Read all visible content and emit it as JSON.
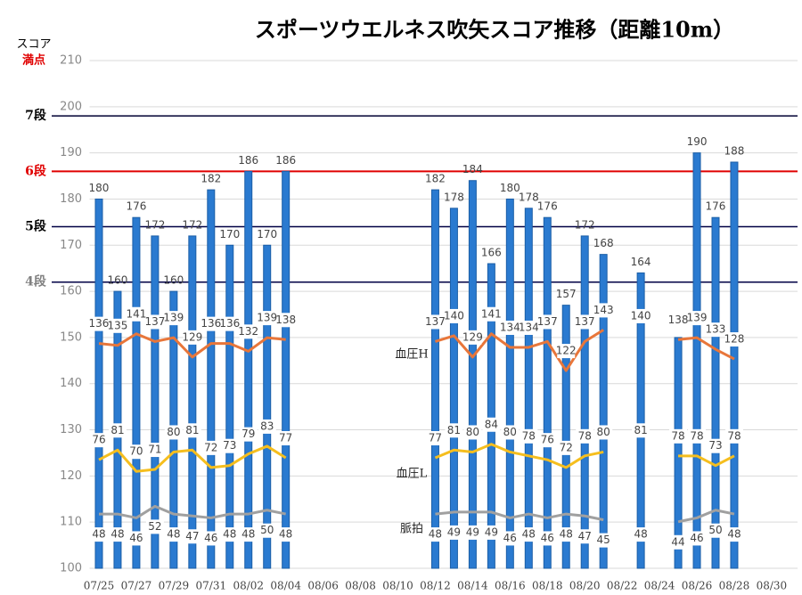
{
  "chart_data": {
    "type": "bar",
    "title": "スポーツウエルネス吹矢スコア推移（距離10m）",
    "y_label": "スコア",
    "y_label_sub": "満点",
    "categories": [
      "07/25",
      null,
      "07/27",
      null,
      "07/29",
      null,
      "07/31",
      null,
      "08/02",
      null,
      "08/04",
      null,
      "08/06",
      null,
      "08/08",
      null,
      "08/10",
      null,
      "08/12",
      null,
      "08/14",
      null,
      "08/16",
      null,
      "08/18",
      null,
      "08/20",
      null,
      "08/22",
      null,
      "08/24",
      null,
      "08/26",
      null,
      "08/28",
      null,
      "08/30"
    ],
    "ylim": [
      100,
      210
    ],
    "yticks": [
      100,
      110,
      120,
      130,
      140,
      150,
      160,
      170,
      180,
      190,
      200,
      210
    ],
    "y2lim": [
      20,
      282
    ],
    "grid": true,
    "reference_lines": [
      {
        "label": "7段",
        "value": 198,
        "color": "#000033",
        "label_color": "#000000"
      },
      {
        "label": "6段",
        "value": 186,
        "color": "#e00000",
        "label_color": "#e00000"
      },
      {
        "label": "5段",
        "value": 174,
        "color": "#000044",
        "label_color": "#000000"
      },
      {
        "label": "4段",
        "value": 162,
        "color": "#000044",
        "label_color": "#808080"
      }
    ],
    "series": [
      {
        "name": "スコア",
        "color": "#2a7ad0",
        "values": [
          180,
          160,
          176,
          172,
          160,
          172,
          182,
          170,
          186,
          170,
          186,
          null,
          null,
          null,
          null,
          null,
          null,
          null,
          182,
          178,
          184,
          166,
          180,
          178,
          176,
          157,
          172,
          168,
          null,
          164,
          null,
          150,
          190,
          176,
          188,
          null,
          null
        ],
        "value_labels": [
          "180",
          "160",
          "176",
          "172",
          "160",
          "172",
          "182",
          "170",
          "186",
          "170",
          "186",
          null,
          null,
          null,
          null,
          null,
          null,
          null,
          "182",
          "178",
          "184",
          "166",
          "180",
          "178",
          "176",
          "157",
          "172",
          "168",
          null,
          "164",
          null,
          null,
          "190",
          "176",
          "188",
          null,
          null
        ]
      },
      {
        "name": "血圧H",
        "color": "#e8763a",
        "axis": "y2",
        "values": [
          136,
          135,
          141,
          137,
          139,
          129,
          136,
          136,
          132,
          139,
          138,
          null,
          null,
          null,
          null,
          null,
          null,
          null,
          137,
          140,
          129,
          141,
          134,
          134,
          137,
          122,
          137,
          143,
          null,
          140,
          null,
          138,
          139,
          133,
          128,
          null,
          null
        ]
      },
      {
        "name": "血圧L",
        "color": "#f5be1e",
        "axis": "y2",
        "values": [
          76,
          81,
          70,
          71,
          80,
          81,
          72,
          73,
          79,
          83,
          77,
          null,
          null,
          null,
          null,
          null,
          null,
          null,
          77,
          81,
          80,
          84,
          80,
          78,
          76,
          72,
          78,
          80,
          null,
          81,
          null,
          78,
          78,
          73,
          78,
          null,
          null
        ]
      },
      {
        "name": "脈拍",
        "color": "#a0a0a0",
        "axis": "y2",
        "values": [
          48,
          48,
          46,
          52,
          48,
          47,
          46,
          48,
          48,
          50,
          48,
          null,
          null,
          null,
          null,
          null,
          null,
          null,
          48,
          49,
          49,
          49,
          46,
          48,
          46,
          48,
          47,
          45,
          null,
          48,
          null,
          44,
          46,
          50,
          48,
          null,
          null
        ]
      }
    ]
  }
}
